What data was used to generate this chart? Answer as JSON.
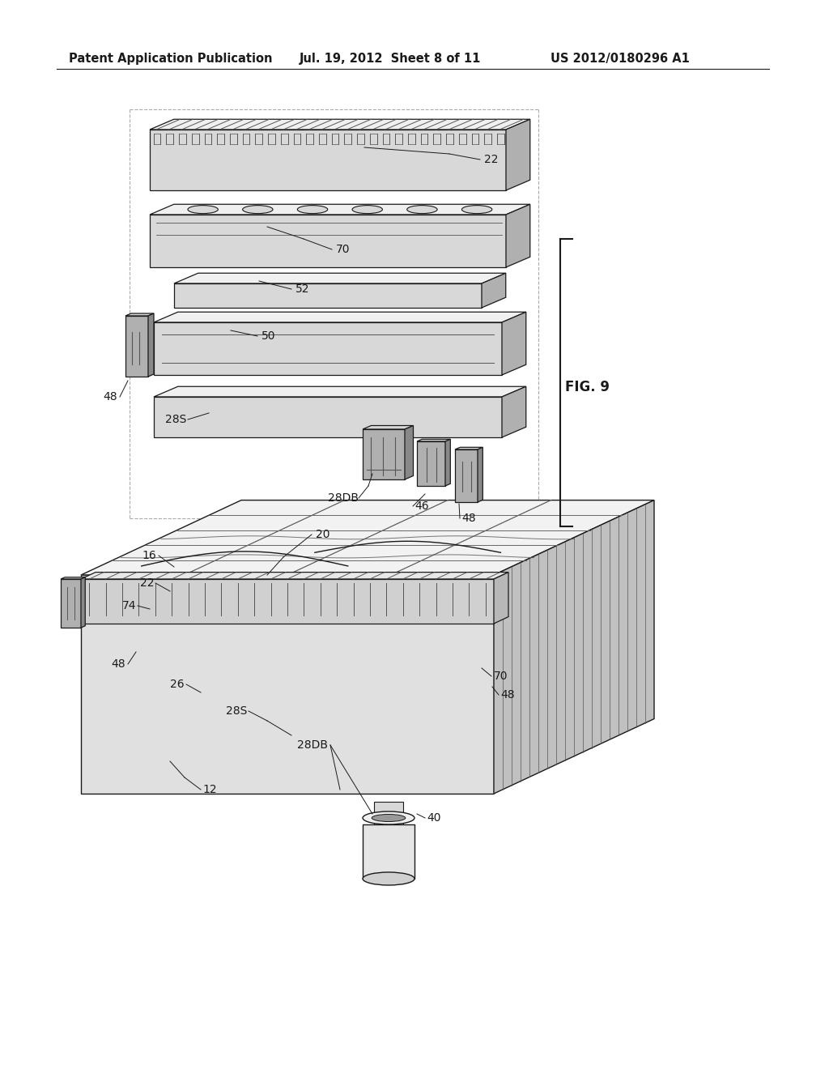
{
  "header_left": "Patent Application Publication",
  "header_mid": "Jul. 19, 2012  Sheet 8 of 11",
  "header_right": "US 2012/0180296 A1",
  "fig_label": "FIG. 9",
  "background_color": "#ffffff",
  "line_color": "#1a1a1a",
  "face_light": "#f0f0f0",
  "face_mid": "#d8d8d8",
  "face_dark": "#b0b0b0",
  "face_darker": "#888888",
  "line_gray": "#666666",
  "hatch_gray": "#555555"
}
